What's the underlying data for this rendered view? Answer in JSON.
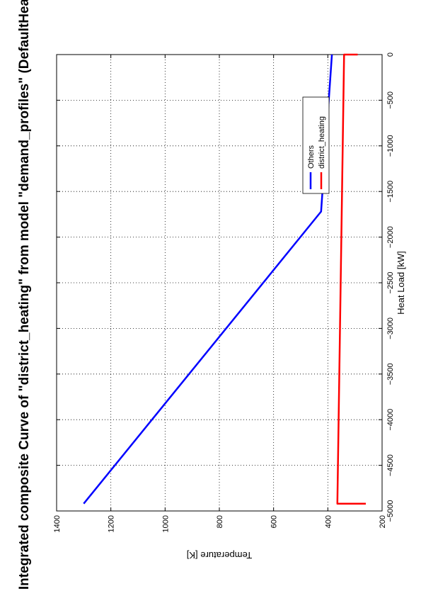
{
  "chart_data": {
    "type": "line",
    "title": "Integrated composite Curve of \"district_heating\" from model \"demand_profiles\" (DefaultHeatC",
    "xlabel": "Heat Load [kW]",
    "ylabel": "Temperature [K]",
    "xlim": [
      -5000,
      0
    ],
    "ylim": [
      200,
      1400
    ],
    "x_ticks": [
      "-5000",
      "-4500",
      "-4000",
      "-3500",
      "-3000",
      "-2500",
      "-2000",
      "-1500",
      "-1000",
      "-500",
      "0"
    ],
    "y_ticks": [
      "200",
      "400",
      "600",
      "800",
      "1000",
      "1200",
      "1400"
    ],
    "grid": true,
    "legend_position": "top-right",
    "series": [
      {
        "name": "Others",
        "color": "#0000ff",
        "points": [
          [
            -4920,
            1300
          ],
          [
            -1720,
            425
          ],
          [
            0,
            385
          ]
        ]
      },
      {
        "name": "district_heating",
        "color": "#ff0000",
        "points": [
          [
            -4920,
            260
          ],
          [
            -4920,
            365
          ],
          [
            0,
            340
          ],
          [
            0,
            290
          ]
        ]
      }
    ]
  }
}
